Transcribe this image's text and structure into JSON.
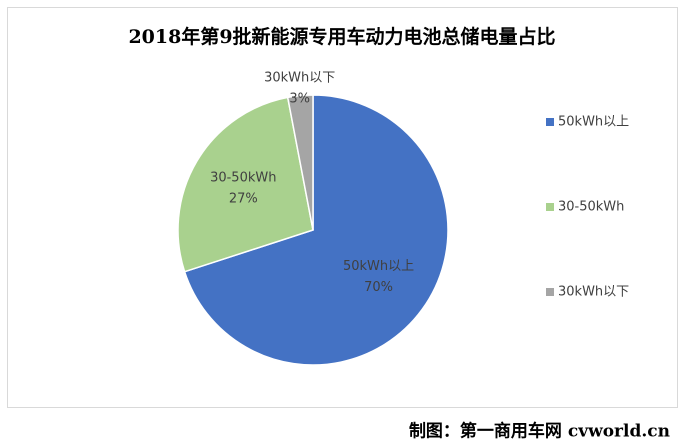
{
  "chart_data": {
    "type": "pie",
    "title": "2018年第9批新能源专用车动力电池总储电量占比",
    "categories": [
      "50kWh以上",
      "30-50kWh",
      "30kWh以下"
    ],
    "values": [
      70,
      27,
      3
    ],
    "value_labels": [
      "70%",
      "27%",
      "3%"
    ],
    "colors": [
      "#4472c4",
      "#a9d18e",
      "#a5a5a5"
    ],
    "legend": "right",
    "source": "制图：第一商用车网 cvworld.cn"
  }
}
